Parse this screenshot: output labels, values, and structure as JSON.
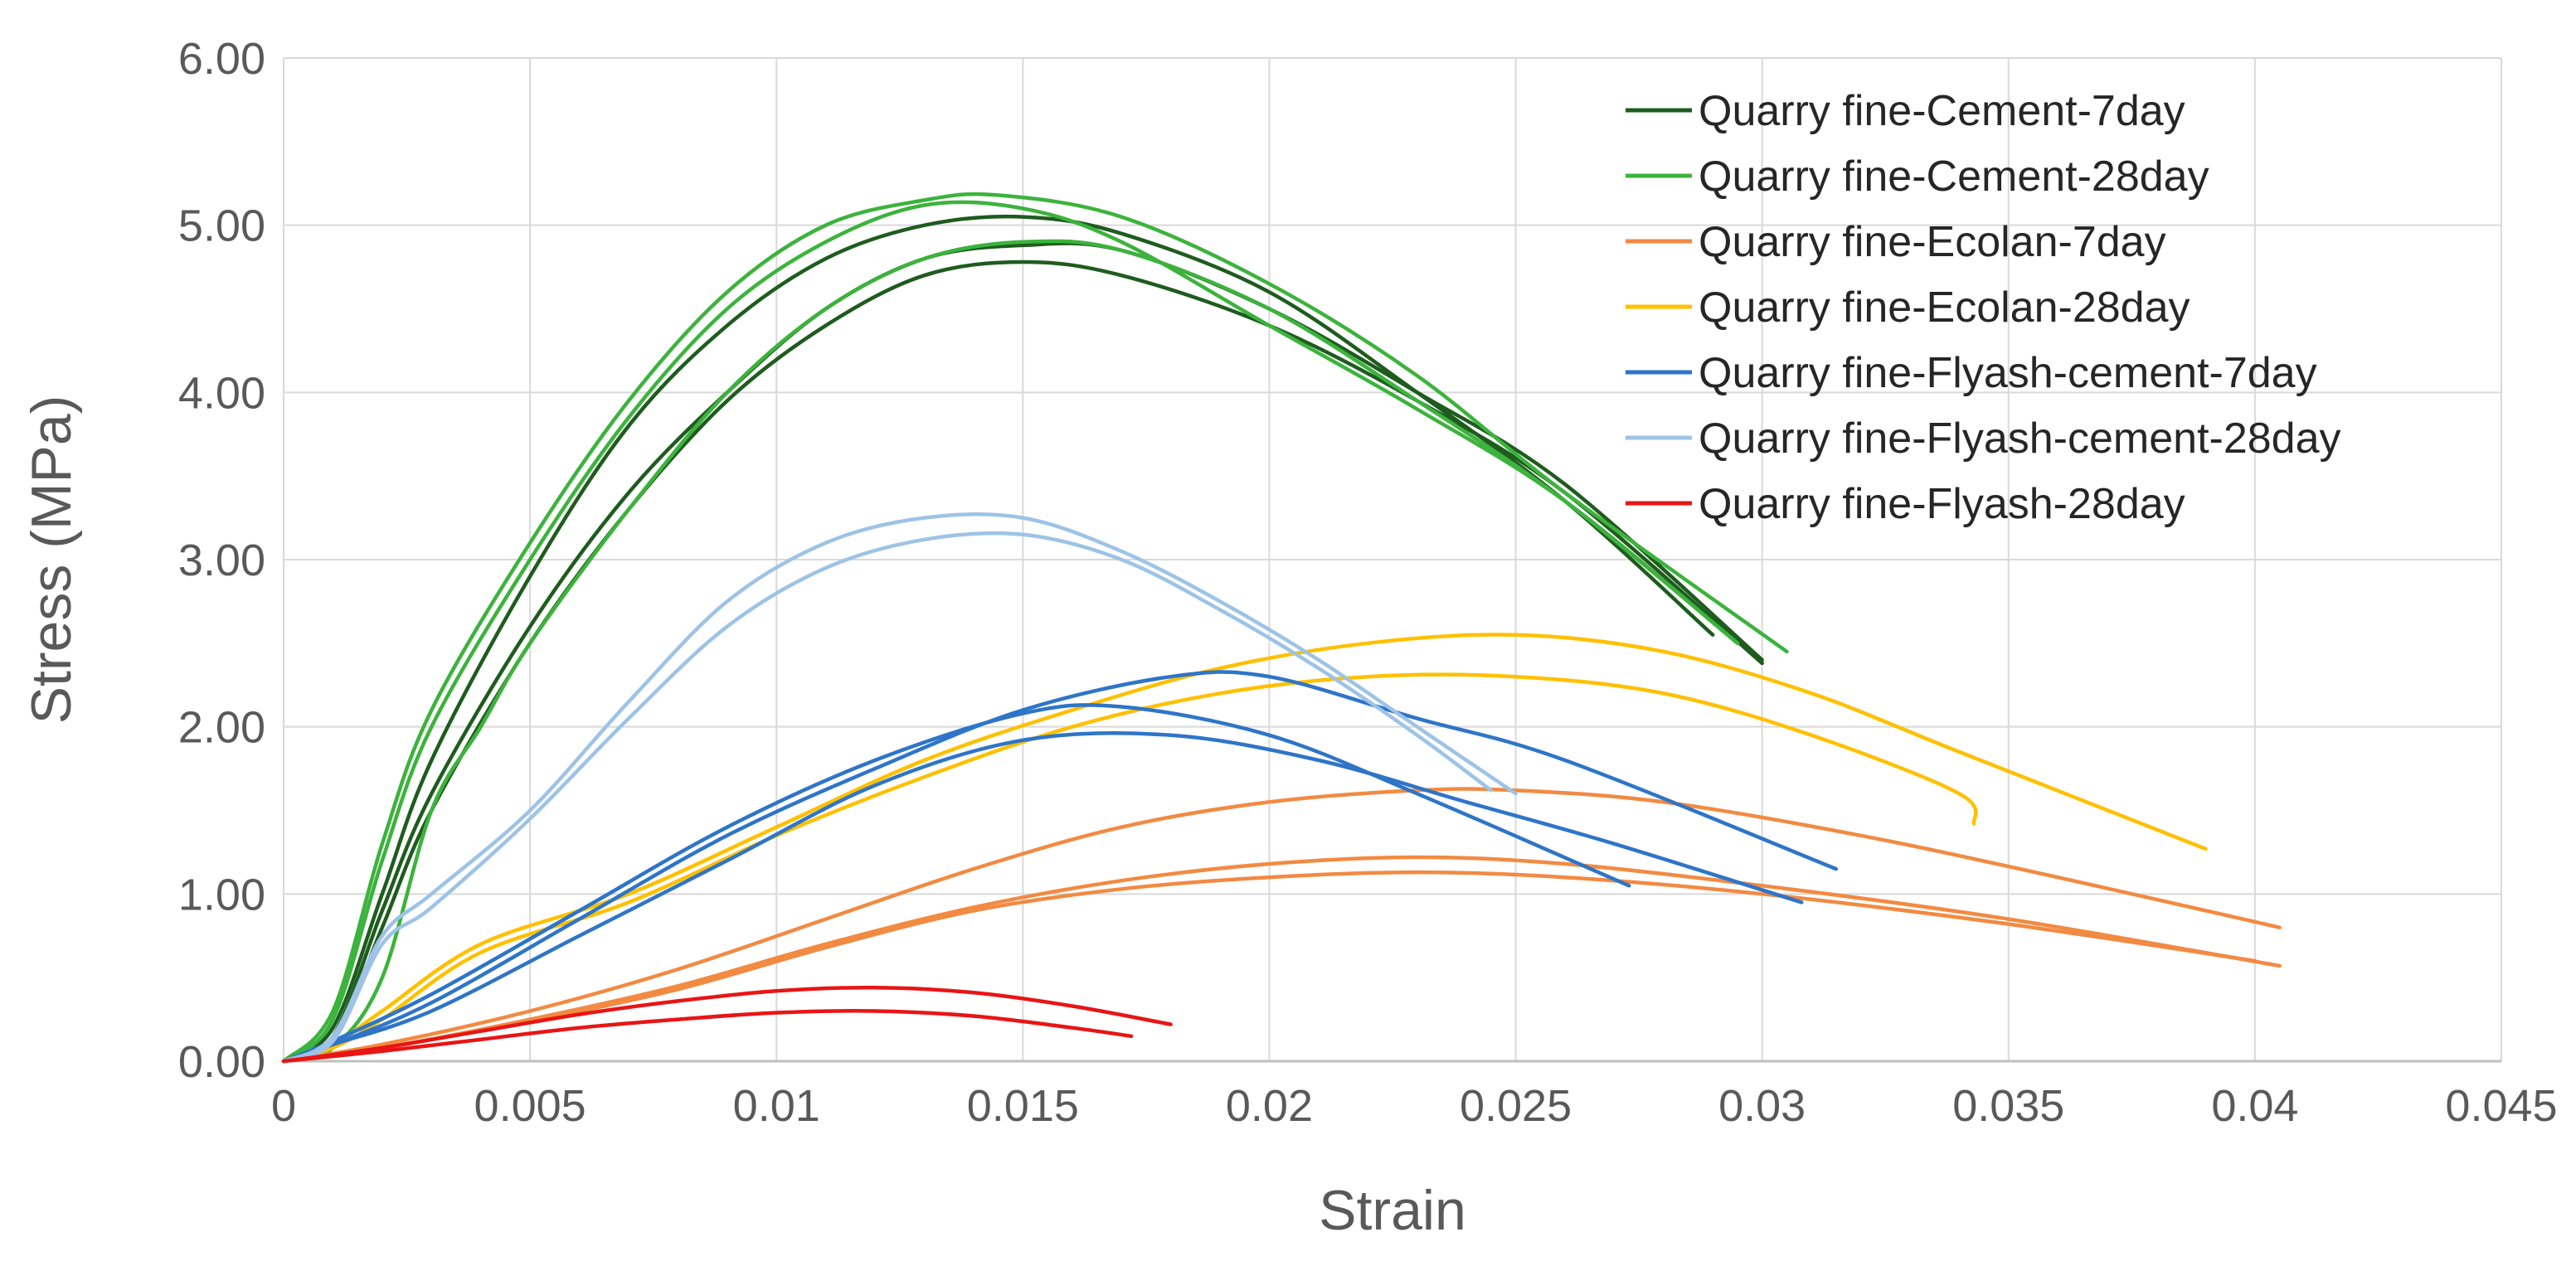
{
  "chart_data": {
    "type": "line",
    "title": "",
    "xlabel": "Strain",
    "ylabel": "Stress (MPa)",
    "xlim": [
      0,
      0.045
    ],
    "ylim": [
      0,
      6
    ],
    "xticks": [
      0,
      0.005,
      0.01,
      0.015,
      0.02,
      0.025,
      0.03,
      0.035,
      0.04,
      0.045
    ],
    "xtick_labels": [
      "0",
      "0.005",
      "0.01",
      "0.015",
      "0.02",
      "0.025",
      "0.03",
      "0.035",
      "0.04",
      "0.045"
    ],
    "yticks": [
      0,
      1,
      2,
      3,
      4,
      5,
      6
    ],
    "ytick_labels": [
      "0.00",
      "1.00",
      "2.00",
      "3.00",
      "4.00",
      "5.00",
      "6.00"
    ],
    "grid": true,
    "legend_position": "top-right",
    "series": [
      {
        "name": "Quarry fine-Cement-7day",
        "color": "#1e5c1e",
        "curves": [
          [
            [
              0,
              0
            ],
            [
              0.001,
              0.2
            ],
            [
              0.002,
              1.0
            ],
            [
              0.003,
              1.8
            ],
            [
              0.005,
              2.9
            ],
            [
              0.007,
              3.8
            ],
            [
              0.009,
              4.4
            ],
            [
              0.011,
              4.8
            ],
            [
              0.013,
              5.0
            ],
            [
              0.015,
              5.05
            ],
            [
              0.017,
              4.95
            ],
            [
              0.02,
              4.6
            ],
            [
              0.023,
              4.0
            ],
            [
              0.026,
              3.35
            ],
            [
              0.029,
              2.55
            ]
          ],
          [
            [
              0,
              0
            ],
            [
              0.001,
              0.15
            ],
            [
              0.002,
              0.9
            ],
            [
              0.003,
              1.6
            ],
            [
              0.005,
              2.6
            ],
            [
              0.007,
              3.4
            ],
            [
              0.009,
              4.0
            ],
            [
              0.011,
              4.5
            ],
            [
              0.013,
              4.8
            ],
            [
              0.015,
              4.88
            ],
            [
              0.017,
              4.85
            ],
            [
              0.02,
              4.5
            ],
            [
              0.023,
              4.0
            ],
            [
              0.026,
              3.45
            ],
            [
              0.03,
              2.4
            ]
          ],
          [
            [
              0,
              0
            ],
            [
              0.001,
              0.12
            ],
            [
              0.002,
              0.8
            ],
            [
              0.003,
              1.5
            ],
            [
              0.005,
              2.5
            ],
            [
              0.007,
              3.3
            ],
            [
              0.009,
              3.95
            ],
            [
              0.011,
              4.4
            ],
            [
              0.013,
              4.7
            ],
            [
              0.015,
              4.78
            ],
            [
              0.017,
              4.7
            ],
            [
              0.02,
              4.4
            ],
            [
              0.023,
              3.95
            ],
            [
              0.026,
              3.4
            ],
            [
              0.03,
              2.38
            ]
          ]
        ]
      },
      {
        "name": "Quarry fine-Cement-28day",
        "color": "#3cb33c",
        "curves": [
          [
            [
              0,
              0
            ],
            [
              0.001,
              0.3
            ],
            [
              0.002,
              1.3
            ],
            [
              0.003,
              2.1
            ],
            [
              0.005,
              3.1
            ],
            [
              0.007,
              3.95
            ],
            [
              0.009,
              4.6
            ],
            [
              0.011,
              5.0
            ],
            [
              0.013,
              5.15
            ],
            [
              0.0145,
              5.18
            ],
            [
              0.017,
              5.05
            ],
            [
              0.02,
              4.65
            ],
            [
              0.023,
              4.1
            ],
            [
              0.026,
              3.4
            ],
            [
              0.0305,
              2.45
            ]
          ],
          [
            [
              0,
              0
            ],
            [
              0.001,
              0.25
            ],
            [
              0.002,
              1.2
            ],
            [
              0.003,
              2.0
            ],
            [
              0.005,
              3.0
            ],
            [
              0.007,
              3.85
            ],
            [
              0.009,
              4.5
            ],
            [
              0.011,
              4.9
            ],
            [
              0.013,
              5.12
            ],
            [
              0.015,
              5.1
            ],
            [
              0.017,
              4.9
            ],
            [
              0.02,
              4.4
            ],
            [
              0.023,
              3.9
            ],
            [
              0.026,
              3.35
            ],
            [
              0.0295,
              2.5
            ]
          ],
          [
            [
              0,
              0
            ],
            [
              0.001,
              0.08
            ],
            [
              0.002,
              0.5
            ],
            [
              0.003,
              1.5
            ],
            [
              0.004,
              2.0
            ],
            [
              0.005,
              2.5
            ],
            [
              0.007,
              3.3
            ],
            [
              0.009,
              4.0
            ],
            [
              0.011,
              4.5
            ],
            [
              0.013,
              4.8
            ],
            [
              0.015,
              4.9
            ],
            [
              0.017,
              4.85
            ],
            [
              0.02,
              4.5
            ],
            [
              0.023,
              3.95
            ],
            [
              0.026,
              3.35
            ],
            [
              0.0295,
              2.5
            ]
          ]
        ]
      },
      {
        "name": "Quarry fine-Ecolan-7day",
        "color": "#f28a42",
        "curves": [
          [
            [
              0,
              0
            ],
            [
              0.002,
              0.1
            ],
            [
              0.005,
              0.3
            ],
            [
              0.008,
              0.55
            ],
            [
              0.011,
              0.85
            ],
            [
              0.014,
              1.15
            ],
            [
              0.017,
              1.4
            ],
            [
              0.02,
              1.55
            ],
            [
              0.023,
              1.62
            ],
            [
              0.025,
              1.62
            ],
            [
              0.028,
              1.55
            ],
            [
              0.032,
              1.35
            ],
            [
              0.036,
              1.1
            ],
            [
              0.0405,
              0.8
            ]
          ],
          [
            [
              0,
              0
            ],
            [
              0.002,
              0.08
            ],
            [
              0.005,
              0.25
            ],
            [
              0.008,
              0.45
            ],
            [
              0.011,
              0.7
            ],
            [
              0.014,
              0.92
            ],
            [
              0.017,
              1.08
            ],
            [
              0.02,
              1.18
            ],
            [
              0.023,
              1.22
            ],
            [
              0.026,
              1.18
            ],
            [
              0.03,
              1.05
            ],
            [
              0.035,
              0.85
            ],
            [
              0.0405,
              0.57
            ]
          ],
          [
            [
              0,
              0
            ],
            [
              0.002,
              0.08
            ],
            [
              0.005,
              0.24
            ],
            [
              0.008,
              0.43
            ],
            [
              0.011,
              0.68
            ],
            [
              0.014,
              0.9
            ],
            [
              0.017,
              1.03
            ],
            [
              0.02,
              1.1
            ],
            [
              0.023,
              1.13
            ],
            [
              0.026,
              1.1
            ],
            [
              0.03,
              1.0
            ],
            [
              0.035,
              0.82
            ],
            [
              0.04,
              0.6
            ]
          ]
        ]
      },
      {
        "name": "Quarry fine-Ecolan-28day",
        "color": "#ffc000",
        "curves": [
          [
            [
              0,
              0
            ],
            [
              0.001,
              0.1
            ],
            [
              0.002,
              0.3
            ],
            [
              0.004,
              0.7
            ],
            [
              0.007,
              1.0
            ],
            [
              0.01,
              1.4
            ],
            [
              0.013,
              1.8
            ],
            [
              0.016,
              2.1
            ],
            [
              0.019,
              2.35
            ],
            [
              0.022,
              2.5
            ],
            [
              0.025,
              2.55
            ],
            [
              0.028,
              2.45
            ],
            [
              0.031,
              2.2
            ],
            [
              0.034,
              1.85
            ],
            [
              0.039,
              1.27
            ]
          ],
          [
            [
              0,
              0
            ],
            [
              0.001,
              0.08
            ],
            [
              0.002,
              0.25
            ],
            [
              0.004,
              0.65
            ],
            [
              0.007,
              0.95
            ],
            [
              0.01,
              1.35
            ],
            [
              0.013,
              1.7
            ],
            [
              0.016,
              2.0
            ],
            [
              0.019,
              2.2
            ],
            [
              0.022,
              2.3
            ],
            [
              0.025,
              2.3
            ],
            [
              0.028,
              2.2
            ],
            [
              0.031,
              1.95
            ],
            [
              0.034,
              1.6
            ],
            [
              0.0343,
              1.42
            ]
          ]
        ]
      },
      {
        "name": "Quarry fine-Flyash-cement-7day",
        "color": "#2e75c8",
        "curves": [
          [
            [
              0,
              0
            ],
            [
              0.001,
              0.1
            ],
            [
              0.003,
              0.3
            ],
            [
              0.006,
              0.75
            ],
            [
              0.009,
              1.2
            ],
            [
              0.012,
              1.65
            ],
            [
              0.015,
              1.92
            ],
            [
              0.018,
              1.95
            ],
            [
              0.021,
              1.8
            ],
            [
              0.024,
              1.55
            ],
            [
              0.027,
              1.3
            ],
            [
              0.0308,
              0.95
            ]
          ],
          [
            [
              0,
              0
            ],
            [
              0.001,
              0.1
            ],
            [
              0.003,
              0.35
            ],
            [
              0.006,
              0.85
            ],
            [
              0.009,
              1.35
            ],
            [
              0.012,
              1.75
            ],
            [
              0.015,
              2.1
            ],
            [
              0.018,
              2.3
            ],
            [
              0.02,
              2.3
            ],
            [
              0.023,
              2.05
            ],
            [
              0.026,
              1.8
            ],
            [
              0.0315,
              1.15
            ]
          ],
          [
            [
              0,
              0
            ],
            [
              0.001,
              0.12
            ],
            [
              0.003,
              0.4
            ],
            [
              0.006,
              0.9
            ],
            [
              0.009,
              1.4
            ],
            [
              0.012,
              1.8
            ],
            [
              0.015,
              2.08
            ],
            [
              0.017,
              2.12
            ],
            [
              0.02,
              1.95
            ],
            [
              0.023,
              1.6
            ],
            [
              0.0273,
              1.05
            ]
          ]
        ]
      },
      {
        "name": "Quarry fine-Flyash-cement-28day",
        "color": "#9dc3e6",
        "curves": [
          [
            [
              0,
              0
            ],
            [
              0.001,
              0.15
            ],
            [
              0.002,
              0.75
            ],
            [
              0.003,
              1.0
            ],
            [
              0.005,
              1.5
            ],
            [
              0.007,
              2.15
            ],
            [
              0.009,
              2.75
            ],
            [
              0.011,
              3.1
            ],
            [
              0.013,
              3.25
            ],
            [
              0.015,
              3.25
            ],
            [
              0.017,
              3.05
            ],
            [
              0.019,
              2.75
            ],
            [
              0.021,
              2.4
            ],
            [
              0.023,
              2.0
            ],
            [
              0.025,
              1.6
            ]
          ],
          [
            [
              0,
              0
            ],
            [
              0.001,
              0.12
            ],
            [
              0.002,
              0.7
            ],
            [
              0.003,
              0.92
            ],
            [
              0.005,
              1.45
            ],
            [
              0.007,
              2.05
            ],
            [
              0.009,
              2.6
            ],
            [
              0.011,
              2.95
            ],
            [
              0.013,
              3.12
            ],
            [
              0.015,
              3.15
            ],
            [
              0.017,
              3.0
            ],
            [
              0.019,
              2.7
            ],
            [
              0.021,
              2.35
            ],
            [
              0.023,
              1.95
            ],
            [
              0.0245,
              1.62
            ]
          ]
        ]
      },
      {
        "name": "Quarry fine-Flyash-28day",
        "color": "#e81515",
        "curves": [
          [
            [
              0,
              0
            ],
            [
              0.002,
              0.08
            ],
            [
              0.004,
              0.18
            ],
            [
              0.006,
              0.28
            ],
            [
              0.008,
              0.36
            ],
            [
              0.01,
              0.42
            ],
            [
              0.012,
              0.44
            ],
            [
              0.014,
              0.41
            ],
            [
              0.016,
              0.33
            ],
            [
              0.018,
              0.22
            ]
          ],
          [
            [
              0,
              0
            ],
            [
              0.002,
              0.06
            ],
            [
              0.004,
              0.13
            ],
            [
              0.006,
              0.2
            ],
            [
              0.008,
              0.25
            ],
            [
              0.01,
              0.29
            ],
            [
              0.012,
              0.3
            ],
            [
              0.014,
              0.27
            ],
            [
              0.016,
              0.2
            ],
            [
              0.0172,
              0.15
            ]
          ]
        ]
      }
    ]
  }
}
